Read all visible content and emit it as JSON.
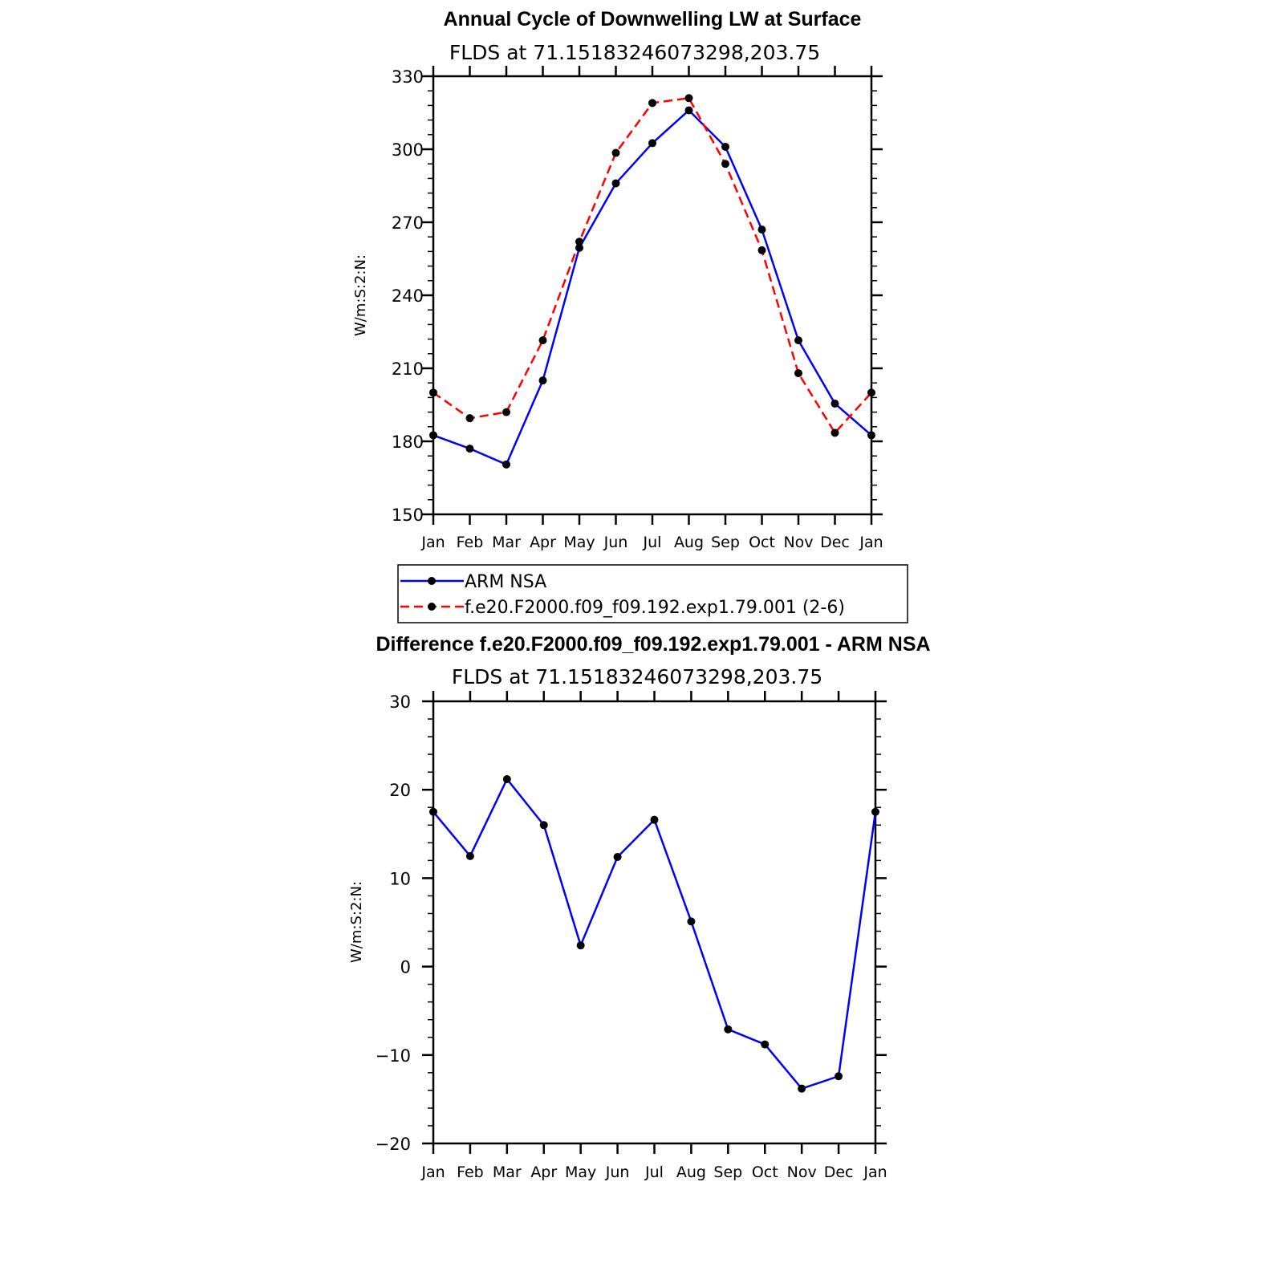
{
  "chart_data": [
    {
      "type": "line",
      "title": "Annual Cycle of Downwelling LW at Surface",
      "subtitle": "FLDS at 71.15183246073298,203.75",
      "ylabel": "W/m:S:2:N:",
      "xlabel": "",
      "categories": [
        "Jan",
        "Feb",
        "Mar",
        "Apr",
        "May",
        "Jun",
        "Jul",
        "Aug",
        "Sep",
        "Oct",
        "Nov",
        "Dec",
        "Jan"
      ],
      "ylim": [
        150,
        330
      ],
      "yticks": [
        "150",
        "180",
        "210",
        "240",
        "270",
        "300",
        "330"
      ],
      "grid": false,
      "legend_position": "below",
      "series": [
        {
          "name": "ARM NSA",
          "color": "#0000ff",
          "dash": "solid",
          "values": [
            182.5,
            177.0,
            170.5,
            205.0,
            259.5,
            286.0,
            302.5,
            316.0,
            301.0,
            267.0,
            221.5,
            195.5,
            182.5
          ]
        },
        {
          "name": "f.e20.F2000.f09_f09.192.exp1.79.001 (2-6)",
          "color": "#ff0000",
          "dash": "dashed",
          "values": [
            200.0,
            189.5,
            192.0,
            221.5,
            262.0,
            298.5,
            319.0,
            321.0,
            294.0,
            258.5,
            208.0,
            183.5,
            200.0
          ]
        }
      ]
    },
    {
      "type": "line",
      "title": "Difference f.e20.F2000.f09_f09.192.exp1.79.001 - ARM NSA",
      "subtitle": "FLDS at 71.15183246073298,203.75",
      "ylabel": "W/m:S:2:N:",
      "xlabel": "",
      "categories": [
        "Jan",
        "Feb",
        "Mar",
        "Apr",
        "May",
        "Jun",
        "Jul",
        "Aug",
        "Sep",
        "Oct",
        "Nov",
        "Dec",
        "Jan"
      ],
      "ylim": [
        -20,
        30
      ],
      "yticks": [
        "−20",
        "−10",
        "0",
        "10",
        "20",
        "30"
      ],
      "grid": false,
      "series": [
        {
          "color": "#0000ff",
          "dash": "solid",
          "values": [
            17.5,
            12.5,
            21.2,
            16.0,
            2.4,
            12.4,
            16.6,
            5.1,
            -7.1,
            -8.8,
            -13.8,
            -12.4,
            17.5
          ]
        }
      ]
    }
  ]
}
